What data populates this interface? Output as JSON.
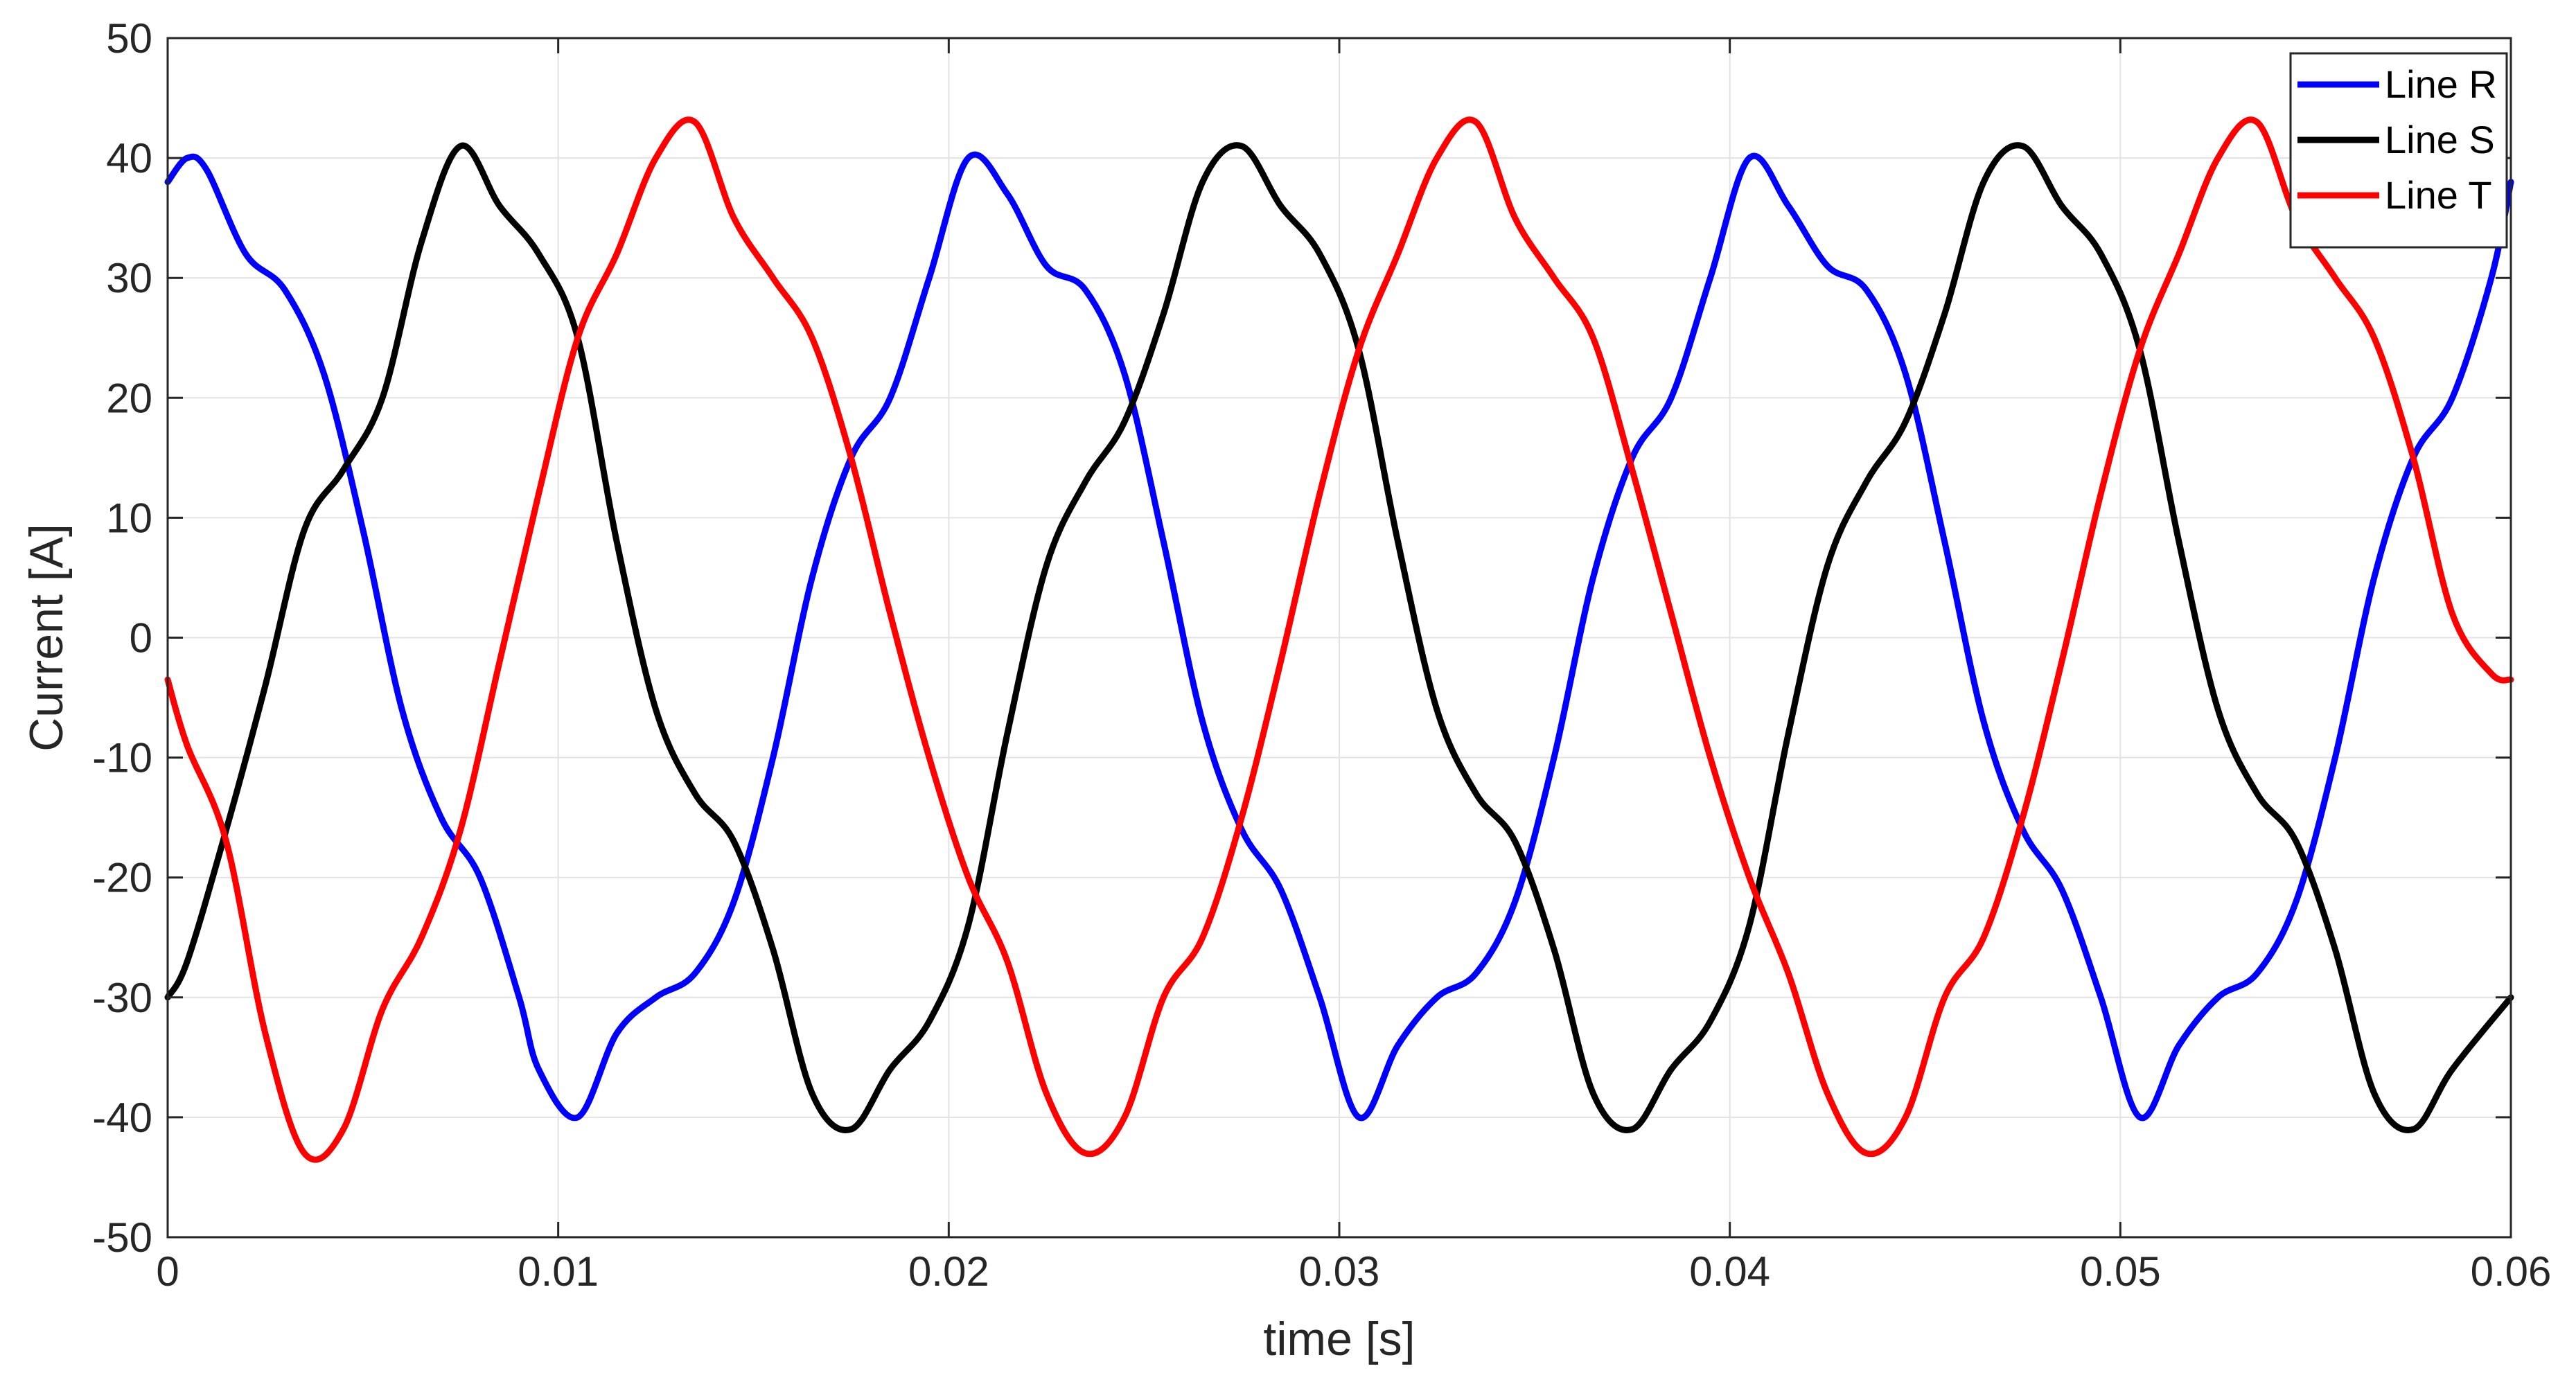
{
  "chart_data": {
    "type": "line",
    "xlabel": "time [s]",
    "ylabel": "Current [A]",
    "xlim": [
      0,
      0.06
    ],
    "ylim": [
      -50,
      50
    ],
    "xticks": [
      0,
      0.01,
      0.02,
      0.03,
      0.04,
      0.05,
      0.06
    ],
    "xtick_labels": [
      "0",
      "0.01",
      "0.02",
      "0.03",
      "0.04",
      "0.05",
      "0.06"
    ],
    "yticks": [
      -50,
      -40,
      -30,
      -20,
      -10,
      0,
      10,
      20,
      30,
      40,
      50
    ],
    "ytick_labels": [
      "-50",
      "-40",
      "-30",
      "-20",
      "-10",
      "0",
      "10",
      "20",
      "30",
      "40",
      "50"
    ],
    "grid": true,
    "legend_position": "top-right",
    "series": [
      {
        "name": "Line R",
        "color": "#0000ff",
        "x": [
          0,
          0.0005,
          0.001,
          0.002,
          0.003,
          0.004,
          0.005,
          0.006,
          0.007,
          0.008,
          0.009,
          0.0095,
          0.0105,
          0.0115,
          0.0125,
          0.0135,
          0.0145,
          0.0155,
          0.0165,
          0.0175,
          0.0185,
          0.0195,
          0.0205,
          0.0215,
          0.0225,
          0.0235,
          0.0245,
          0.0255,
          0.0265,
          0.0275,
          0.0285,
          0.0295,
          0.0305,
          0.0315,
          0.0325,
          0.0335,
          0.0345,
          0.0355,
          0.0365,
          0.0375,
          0.0385,
          0.0395,
          0.0405,
          0.0415,
          0.0425,
          0.0435,
          0.0445,
          0.0455,
          0.0465,
          0.0475,
          0.0485,
          0.0495,
          0.0505,
          0.0515,
          0.0525,
          0.0535,
          0.0545,
          0.0555,
          0.0565,
          0.0575,
          0.0585,
          0.0595,
          0.06
        ],
        "y": [
          38,
          40,
          39,
          32,
          29,
          22,
          9,
          -6,
          -15,
          -20,
          -30,
          -36,
          -40,
          -33,
          -30,
          -28,
          -22,
          -10,
          5,
          15,
          20,
          30,
          40,
          37,
          31,
          29,
          22,
          8,
          -7,
          -16,
          -21,
          -30,
          -40,
          -34,
          -30,
          -28,
          -22,
          -10,
          5,
          15,
          20,
          30,
          40,
          36,
          31,
          29,
          22,
          8,
          -7,
          -16,
          -21,
          -30,
          -40,
          -34,
          -30,
          -28,
          -22,
          -10,
          5,
          15,
          20,
          30,
          38
        ]
      },
      {
        "name": "Line S",
        "color": "#000000",
        "x": [
          0,
          0.0005,
          0.0015,
          0.0025,
          0.0035,
          0.0045,
          0.0055,
          0.0065,
          0.0075,
          0.0085,
          0.0095,
          0.0105,
          0.0115,
          0.0125,
          0.0135,
          0.0145,
          0.0155,
          0.0165,
          0.0175,
          0.0185,
          0.0195,
          0.0205,
          0.0215,
          0.0225,
          0.0235,
          0.0245,
          0.0255,
          0.0265,
          0.0275,
          0.0285,
          0.0295,
          0.0305,
          0.0315,
          0.0325,
          0.0335,
          0.0345,
          0.0355,
          0.0365,
          0.0375,
          0.0385,
          0.0395,
          0.0405,
          0.0415,
          0.0425,
          0.0435,
          0.0445,
          0.0455,
          0.0465,
          0.0475,
          0.0485,
          0.0495,
          0.0505,
          0.0515,
          0.0525,
          0.0535,
          0.0545,
          0.0555,
          0.0565,
          0.0575,
          0.0585,
          0.06
        ],
        "y": [
          -30,
          -27,
          -16,
          -4,
          9,
          14,
          20,
          33,
          41,
          36,
          32,
          25,
          8,
          -6,
          -13,
          -17,
          -26,
          -38,
          -41,
          -36,
          -32,
          -24,
          -8,
          6,
          13,
          18,
          27,
          38,
          41,
          36,
          32,
          24,
          8,
          -6,
          -13,
          -17,
          -26,
          -38,
          -41,
          -36,
          -32,
          -24,
          -8,
          6,
          13,
          18,
          27,
          38,
          41,
          36,
          32,
          24,
          8,
          -6,
          -13,
          -17,
          -26,
          -38,
          -41,
          -36,
          -30
        ]
      },
      {
        "name": "Line T",
        "color": "#ff0000",
        "x": [
          0,
          0.0005,
          0.0015,
          0.0025,
          0.0035,
          0.0045,
          0.0055,
          0.0065,
          0.0075,
          0.0085,
          0.0095,
          0.0105,
          0.0115,
          0.0125,
          0.0135,
          0.0145,
          0.0155,
          0.0165,
          0.0175,
          0.0185,
          0.0195,
          0.0205,
          0.0215,
          0.0225,
          0.0235,
          0.0245,
          0.0255,
          0.0265,
          0.0275,
          0.0285,
          0.0295,
          0.0305,
          0.0315,
          0.0325,
          0.0335,
          0.0345,
          0.0355,
          0.0365,
          0.0375,
          0.0385,
          0.0395,
          0.0405,
          0.0415,
          0.0425,
          0.0435,
          0.0445,
          0.0455,
          0.0465,
          0.0475,
          0.0485,
          0.0495,
          0.0505,
          0.0515,
          0.0525,
          0.0535,
          0.0545,
          0.0555,
          0.0565,
          0.0575,
          0.0585,
          0.0595,
          0.06
        ],
        "y": [
          -3.5,
          -9,
          -17,
          -33,
          -43,
          -41,
          -31,
          -25,
          -16,
          -2,
          12,
          25,
          32,
          40,
          43,
          35,
          30,
          25,
          15,
          2,
          -10,
          -20,
          -27,
          -38,
          -43,
          -40,
          -30,
          -25,
          -15,
          -2,
          12,
          24,
          32,
          40,
          43,
          35,
          30,
          25,
          14,
          2,
          -10,
          -20,
          -28,
          -38,
          -43,
          -40,
          -30,
          -25,
          -15,
          -2,
          12,
          24,
          32,
          40,
          43,
          35,
          30,
          25,
          15,
          2,
          -3,
          -3.5
        ]
      }
    ]
  }
}
